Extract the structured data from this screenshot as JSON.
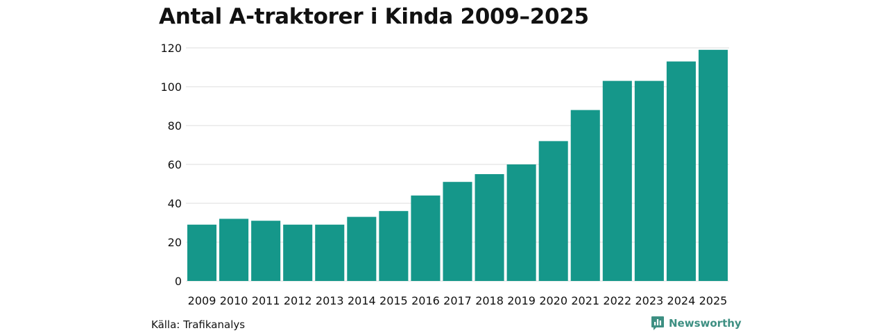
{
  "chart_data": {
    "type": "bar",
    "title": "Antal A-traktorer i Kinda 2009–2025",
    "xlabel": "",
    "ylabel": "",
    "categories": [
      "2009",
      "2010",
      "2011",
      "2012",
      "2013",
      "2014",
      "2015",
      "2016",
      "2017",
      "2018",
      "2019",
      "2020",
      "2021",
      "2022",
      "2023",
      "2024",
      "2025"
    ],
    "values": [
      29,
      32,
      31,
      29,
      29,
      33,
      36,
      44,
      51,
      55,
      60,
      72,
      88,
      103,
      103,
      113,
      119
    ],
    "ylim": [
      0,
      120
    ],
    "yticks": [
      0,
      20,
      40,
      60,
      80,
      100,
      120
    ],
    "grid": true,
    "legend": "none",
    "bar_color": "#15978a",
    "grid_color": "#dddddd"
  },
  "footer": {
    "source": "Källa: Trafikanalys",
    "brand": "Newsworthy",
    "brand_color": "#3d8f82",
    "brand_icon": "newsworthy-chart-icon"
  }
}
